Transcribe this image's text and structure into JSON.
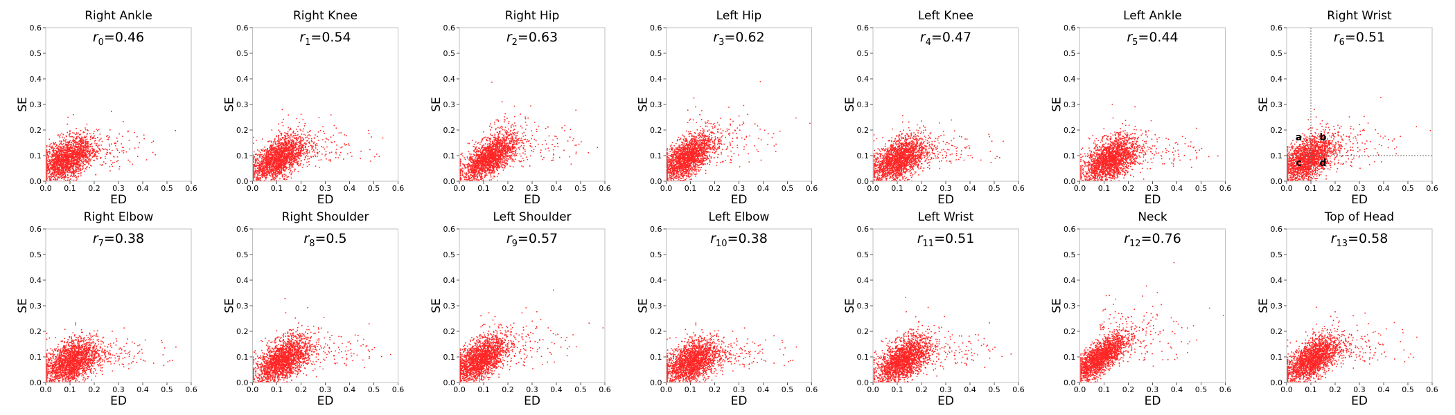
{
  "chart_data": {
    "type": "scatter",
    "point_color": "#ff0000",
    "axis_color": "#bfbfbf",
    "xlabel": "ED",
    "ylabel": "SE",
    "xlim": [
      0,
      0.6
    ],
    "ylim": [
      0,
      0.6
    ],
    "ticks": [
      "0.0",
      "0.1",
      "0.2",
      "0.3",
      "0.4",
      "0.5",
      "0.6"
    ],
    "tick_values": [
      0,
      0.1,
      0.2,
      0.3,
      0.4,
      0.5,
      0.6
    ],
    "panels": [
      {
        "title": "Right Ankle",
        "r_sub": "0",
        "r_value": "0.46"
      },
      {
        "title": "Right Knee",
        "r_sub": "1",
        "r_value": "0.54"
      },
      {
        "title": "Right Hip",
        "r_sub": "2",
        "r_value": "0.63"
      },
      {
        "title": "Left Hip",
        "r_sub": "3",
        "r_value": "0.62"
      },
      {
        "title": "Left Knee",
        "r_sub": "4",
        "r_value": "0.47"
      },
      {
        "title": "Left Ankle",
        "r_sub": "5",
        "r_value": "0.44"
      },
      {
        "title": "Right Wrist",
        "r_sub": "6",
        "r_value": "0.51",
        "quadrants": {
          "x_split": 0.1,
          "y_split": 0.1,
          "labels": [
            {
              "text": "a",
              "x": 0.05,
              "y": 0.16
            },
            {
              "text": "b",
              "x": 0.15,
              "y": 0.16
            },
            {
              "text": "c",
              "x": 0.05,
              "y": 0.06
            },
            {
              "text": "d",
              "x": 0.15,
              "y": 0.06
            }
          ]
        }
      },
      {
        "title": "Right Elbow",
        "r_sub": "7",
        "r_value": "0.38"
      },
      {
        "title": "Right Shoulder",
        "r_sub": "8",
        "r_value": "0.5"
      },
      {
        "title": "Left Shoulder",
        "r_sub": "9",
        "r_value": "0.57"
      },
      {
        "title": "Left Elbow",
        "r_sub": "10",
        "r_value": "0.38"
      },
      {
        "title": "Left Wrist",
        "r_sub": "11",
        "r_value": "0.51"
      },
      {
        "title": "Neck",
        "r_sub": "12",
        "r_value": "0.76"
      },
      {
        "title": "Top of Head",
        "r_sub": "13",
        "r_value": "0.58"
      }
    ]
  }
}
